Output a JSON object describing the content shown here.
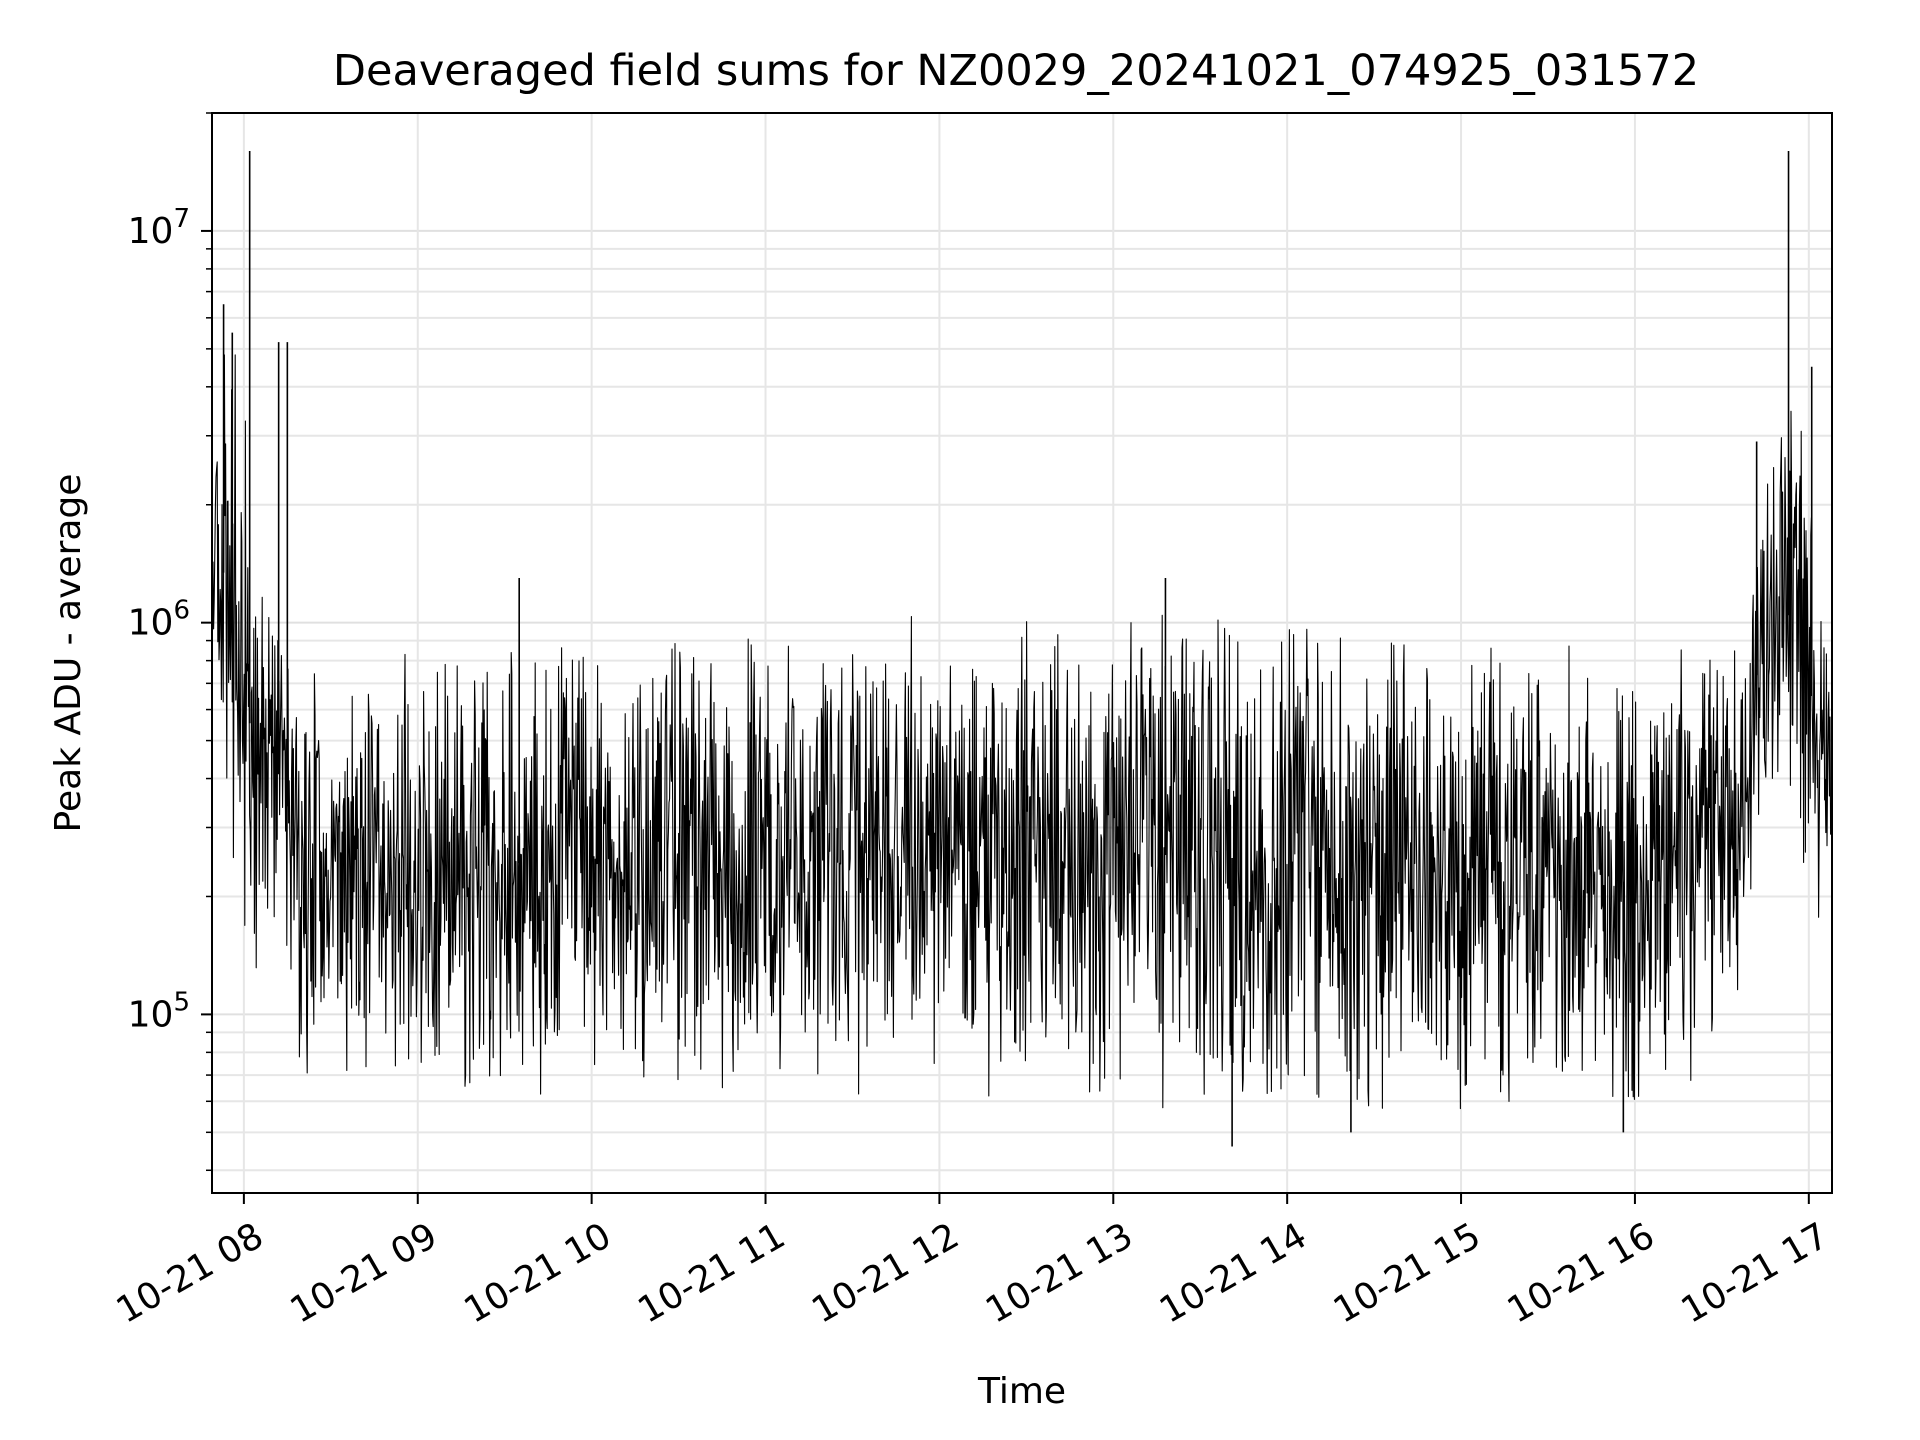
{
  "chart_data": {
    "type": "line",
    "title": "Deaveraged field sums for NZ0029_20241021_074925_031572",
    "xlabel": "Time",
    "ylabel": "Peak ADU - average",
    "yscale": "log",
    "grid": true,
    "line_color": "#000000",
    "xlim": [
      "2024-10-21 07:49",
      "2024-10-21 17:08"
    ],
    "ylim": [
      35000,
      20000000
    ],
    "x_ticks": [
      {
        "value": "2024-10-21 08:00",
        "label": "10-21 08"
      },
      {
        "value": "2024-10-21 09:00",
        "label": "10-21 09"
      },
      {
        "value": "2024-10-21 10:00",
        "label": "10-21 10"
      },
      {
        "value": "2024-10-21 11:00",
        "label": "10-21 11"
      },
      {
        "value": "2024-10-21 12:00",
        "label": "10-21 12"
      },
      {
        "value": "2024-10-21 13:00",
        "label": "10-21 13"
      },
      {
        "value": "2024-10-21 14:00",
        "label": "10-21 14"
      },
      {
        "value": "2024-10-21 15:00",
        "label": "10-21 15"
      },
      {
        "value": "2024-10-21 16:00",
        "label": "10-21 16"
      },
      {
        "value": "2024-10-21 17:00",
        "label": "10-21 17"
      }
    ],
    "y_ticks": [
      {
        "value": 100000,
        "base": "10",
        "exp": "5"
      },
      {
        "value": 1000000,
        "base": "10",
        "exp": "6"
      },
      {
        "value": 10000000,
        "base": "10",
        "exp": "7"
      }
    ],
    "envelope": [
      {
        "x": "2024-10-21 07:49",
        "low": 900000,
        "high": 1800000
      },
      {
        "x": "2024-10-21 07:53",
        "low": 300000,
        "high": 6000000
      },
      {
        "x": "2024-10-21 07:58",
        "low": 120000,
        "high": 5500000
      },
      {
        "x": "2024-10-21 08:03",
        "low": 110000,
        "high": 2300000
      },
      {
        "x": "2024-10-21 08:08",
        "low": 150000,
        "high": 1500000
      },
      {
        "x": "2024-10-21 08:13",
        "low": 200000,
        "high": 900000
      },
      {
        "x": "2024-10-21 08:18",
        "low": 70000,
        "high": 850000
      },
      {
        "x": "2024-10-21 08:30",
        "low": 65000,
        "high": 820000
      },
      {
        "x": "2024-10-21 08:45",
        "low": 68000,
        "high": 800000
      },
      {
        "x": "2024-10-21 09:00",
        "low": 62000,
        "high": 900000
      },
      {
        "x": "2024-10-21 09:15",
        "low": 60000,
        "high": 950000
      },
      {
        "x": "2024-10-21 09:30",
        "low": 58000,
        "high": 1000000
      },
      {
        "x": "2024-10-21 09:45",
        "low": 62000,
        "high": 1000000
      },
      {
        "x": "2024-10-21 10:00",
        "low": 65000,
        "high": 950000
      },
      {
        "x": "2024-10-21 10:30",
        "low": 62000,
        "high": 950000
      },
      {
        "x": "2024-10-21 11:00",
        "low": 60000,
        "high": 1000000
      },
      {
        "x": "2024-10-21 11:30",
        "low": 62000,
        "high": 1050000
      },
      {
        "x": "2024-10-21 12:00",
        "low": 60000,
        "high": 1050000
      },
      {
        "x": "2024-10-21 12:30",
        "low": 60000,
        "high": 1050000
      },
      {
        "x": "2024-10-21 13:00",
        "low": 58000,
        "high": 1100000
      },
      {
        "x": "2024-10-21 13:30",
        "low": 55000,
        "high": 1200000
      },
      {
        "x": "2024-10-21 14:00",
        "low": 55000,
        "high": 1050000
      },
      {
        "x": "2024-10-21 14:30",
        "low": 52000,
        "high": 1000000
      },
      {
        "x": "2024-10-21 15:00",
        "low": 55000,
        "high": 950000
      },
      {
        "x": "2024-10-21 15:30",
        "low": 56000,
        "high": 950000
      },
      {
        "x": "2024-10-21 16:00",
        "low": 52000,
        "high": 900000
      },
      {
        "x": "2024-10-21 16:20",
        "low": 60000,
        "high": 900000
      },
      {
        "x": "2024-10-21 16:35",
        "low": 90000,
        "high": 900000
      },
      {
        "x": "2024-10-21 16:42",
        "low": 300000,
        "high": 1800000
      },
      {
        "x": "2024-10-21 16:50",
        "low": 350000,
        "high": 3500000
      },
      {
        "x": "2024-10-21 16:58",
        "low": 200000,
        "high": 4500000
      },
      {
        "x": "2024-10-21 17:03",
        "low": 170000,
        "high": 1500000
      },
      {
        "x": "2024-10-21 17:08",
        "low": 200000,
        "high": 800000
      }
    ],
    "spikes": [
      {
        "x": "2024-10-21 07:53",
        "y": 6500000
      },
      {
        "x": "2024-10-21 07:56",
        "y": 5500000
      },
      {
        "x": "2024-10-21 08:02",
        "y": 16000000
      },
      {
        "x": "2024-10-21 08:12",
        "y": 5200000
      },
      {
        "x": "2024-10-21 08:15",
        "y": 5200000
      },
      {
        "x": "2024-10-21 09:35",
        "y": 1300000
      },
      {
        "x": "2024-10-21 13:18",
        "y": 1300000
      },
      {
        "x": "2024-10-21 13:41",
        "y": 46000
      },
      {
        "x": "2024-10-21 14:22",
        "y": 50000
      },
      {
        "x": "2024-10-21 15:56",
        "y": 50000
      },
      {
        "x": "2024-10-21 16:42",
        "y": 2900000
      },
      {
        "x": "2024-10-21 16:53",
        "y": 16000000
      },
      {
        "x": "2024-10-21 17:01",
        "y": 4500000
      }
    ]
  }
}
